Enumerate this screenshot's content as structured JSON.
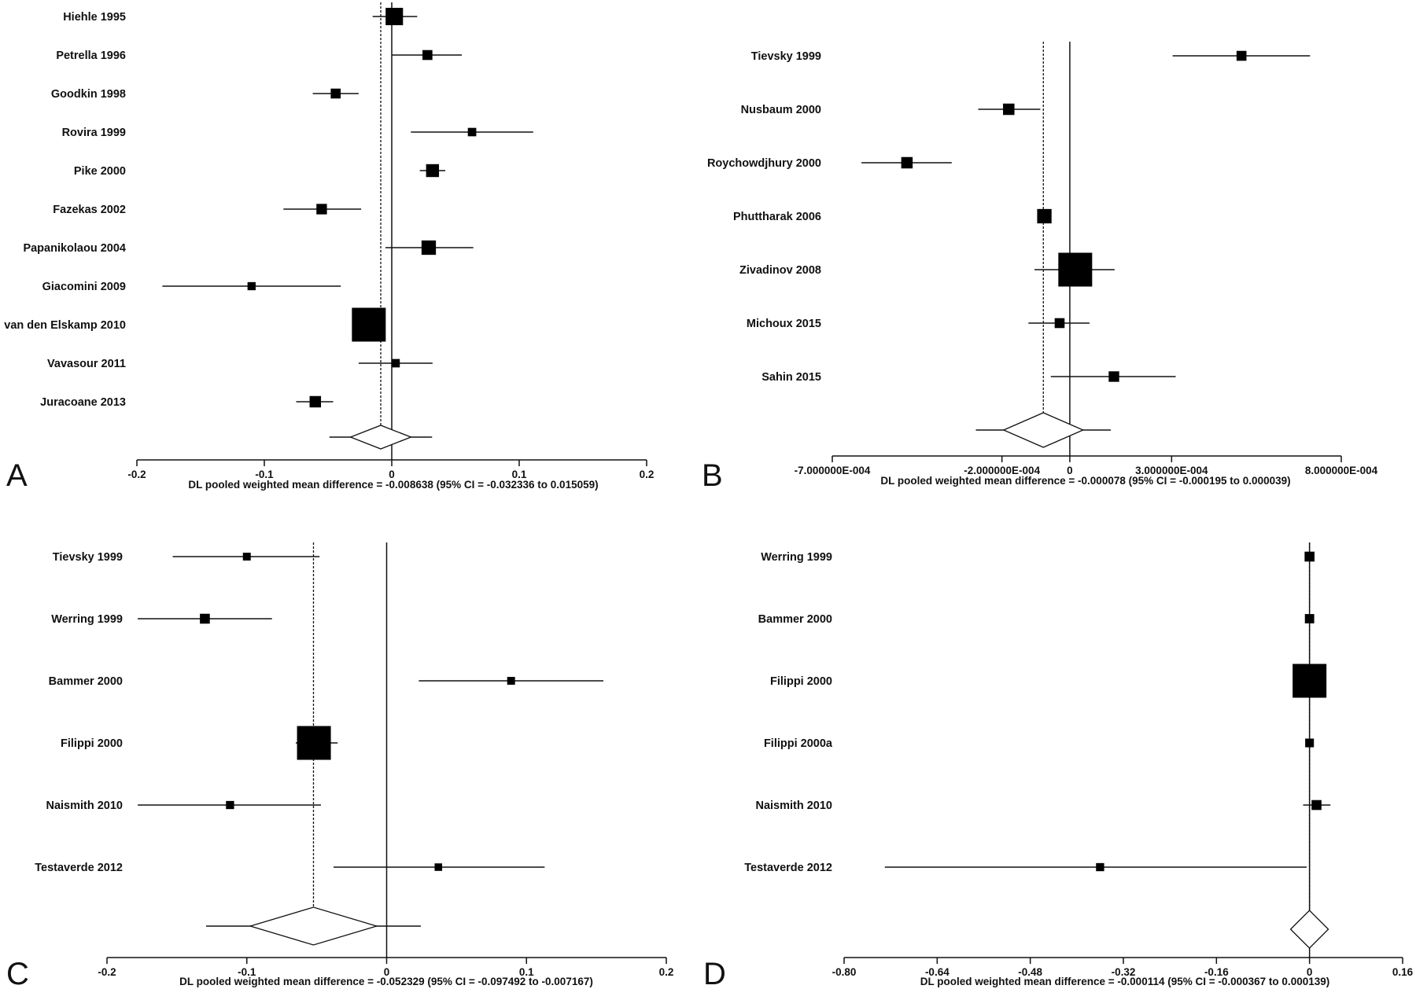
{
  "chart_data": [
    {
      "type": "forest",
      "panel_label": "A",
      "xlim": [
        -0.2,
        0.2
      ],
      "ticks": [
        -0.2,
        -0.1,
        0,
        0.1,
        0.2
      ],
      "tick_labels": [
        "-0.2",
        "-0.1",
        "0",
        "0.1",
        "0.2"
      ],
      "studies": [
        {
          "label": "Hiehle 1995",
          "est": 0.002,
          "lo": -0.015,
          "hi": 0.02,
          "weight": 0.45
        },
        {
          "label": "Petrella 1996",
          "est": 0.028,
          "lo": 0.0,
          "hi": 0.055,
          "weight": 0.2
        },
        {
          "label": "Goodkin 1998",
          "est": -0.044,
          "lo": -0.062,
          "hi": -0.026,
          "weight": 0.2
        },
        {
          "label": "Rovira 1999",
          "est": 0.063,
          "lo": 0.015,
          "hi": 0.111,
          "weight": 0.15
        },
        {
          "label": "Pike 2000",
          "est": 0.032,
          "lo": 0.022,
          "hi": 0.042,
          "weight": 0.3
        },
        {
          "label": "Fazekas 2002",
          "est": -0.055,
          "lo": -0.085,
          "hi": -0.024,
          "weight": 0.22
        },
        {
          "label": "Papanikolaou 2004",
          "est": 0.029,
          "lo": -0.005,
          "hi": 0.064,
          "weight": 0.35
        },
        {
          "label": "Giacomini 2009",
          "est": -0.11,
          "lo": -0.18,
          "hi": -0.04,
          "weight": 0.14
        },
        {
          "label": "van den Elskamp 2010",
          "est": -0.018,
          "lo": -0.03,
          "hi": -0.007,
          "weight": 1.0
        },
        {
          "label": "Vavasour 2011",
          "est": 0.003,
          "lo": -0.026,
          "hi": 0.032,
          "weight": 0.15
        },
        {
          "label": "Juracoane 2013",
          "est": -0.06,
          "lo": -0.075,
          "hi": -0.046,
          "weight": 0.25
        }
      ],
      "pooled": {
        "est": -0.008638,
        "lo": -0.032336,
        "hi": 0.015059
      },
      "caption": "DL pooled weighted mean difference = -0.008638  (95% CI = -0.032336 to 0.015059)"
    },
    {
      "type": "forest",
      "panel_label": "B",
      "xlim": [
        -0.0007,
        0.0008
      ],
      "ticks": [
        -0.0007,
        -0.0002,
        0,
        0.0003,
        0.0008
      ],
      "tick_labels": [
        "-7.000000E-004",
        "-2.000000E-004",
        "0",
        "3.000000E-004",
        "8.000000E-004"
      ],
      "studies": [
        {
          "label": "Tievsky 1999",
          "est": 0.000506,
          "lo": 0.000303,
          "hi": 0.000708,
          "weight": 0.2
        },
        {
          "label": "Nusbaum 2000",
          "est": -0.00018,
          "lo": -0.00027,
          "hi": -8.7e-05,
          "weight": 0.25
        },
        {
          "label": "Roychowdjhury 2000",
          "est": -0.00048,
          "lo": -0.000614,
          "hi": -0.000348,
          "weight": 0.25
        },
        {
          "label": "Phuttharak 2006",
          "est": -7.5e-05,
          "lo": -7.5e-05,
          "hi": -7.5e-05,
          "weight": 0.35
        },
        {
          "label": "Zivadinov 2008",
          "est": 1.6e-05,
          "lo": -0.000104,
          "hi": 0.000132,
          "weight": 1.0
        },
        {
          "label": "Michoux 2015",
          "est": -3e-05,
          "lo": -0.000122,
          "hi": 5.8e-05,
          "weight": 0.2
        },
        {
          "label": "Sahin 2015",
          "est": 0.00013,
          "lo": -5.6e-05,
          "hi": 0.000312,
          "weight": 0.22
        }
      ],
      "pooled": {
        "est": -7.8e-05,
        "lo": -0.000195,
        "hi": 3.9e-05
      },
      "caption": "DL pooled weighted mean difference = -0.000078  (95% CI = -0.000195 to 0.000039)"
    },
    {
      "type": "forest",
      "panel_label": "C",
      "xlim": [
        -0.2,
        0.2
      ],
      "ticks": [
        -0.2,
        -0.1,
        0,
        0.1,
        0.2
      ],
      "tick_labels": [
        "-0.2",
        "-0.1",
        "0",
        "0.1",
        "0.2"
      ],
      "studies": [
        {
          "label": "Tievsky 1999",
          "est": -0.1,
          "lo": -0.153,
          "hi": -0.048,
          "weight": 0.13
        },
        {
          "label": "Werring 1999",
          "est": -0.13,
          "lo": -0.178,
          "hi": -0.082,
          "weight": 0.2
        },
        {
          "label": "Bammer 2000",
          "est": 0.089,
          "lo": 0.023,
          "hi": 0.155,
          "weight": 0.13
        },
        {
          "label": "Filippi 2000",
          "est": -0.052,
          "lo": -0.065,
          "hi": -0.035,
          "weight": 1.0
        },
        {
          "label": "Naismith 2010",
          "est": -0.112,
          "lo": -0.178,
          "hi": -0.047,
          "weight": 0.14
        },
        {
          "label": "Testaverde 2012",
          "est": 0.037,
          "lo": -0.038,
          "hi": 0.113,
          "weight": 0.12
        }
      ],
      "pooled": {
        "est": -0.052329,
        "lo": -0.097492,
        "hi": -0.007167
      },
      "caption": "DL pooled weighted mean difference = -0.052329  (95% CI = -0.097492 to -0.007167)"
    },
    {
      "type": "forest",
      "panel_label": "D",
      "xlim": [
        -0.8,
        0.16
      ],
      "ticks": [
        -0.8,
        -0.64,
        -0.48,
        -0.32,
        -0.16,
        0,
        0.16
      ],
      "tick_labels": [
        "-0.80",
        "-0.64",
        "-0.48",
        "-0.32",
        "-0.16",
        "0",
        "0.16"
      ],
      "studies": [
        {
          "label": "Werring 1999",
          "est": 0.0,
          "lo": 0.0,
          "hi": 0.0,
          "weight": 0.2
        },
        {
          "label": "Bammer 2000",
          "est": 0.0,
          "lo": 0.0,
          "hi": 0.0,
          "weight": 0.18
        },
        {
          "label": "Filippi 2000",
          "est": 0.0,
          "lo": 0.0,
          "hi": 0.0,
          "weight": 1.0
        },
        {
          "label": "Filippi 2000a",
          "est": 0.0,
          "lo": 0.0,
          "hi": 0.0,
          "weight": 0.16
        },
        {
          "label": "Naismith 2010",
          "est": 0.012,
          "lo": -0.011,
          "hi": 0.036,
          "weight": 0.2
        },
        {
          "label": "Testaverde 2012",
          "est": -0.36,
          "lo": -0.73,
          "hi": -0.005,
          "weight": 0.14
        }
      ],
      "pooled": {
        "est": -0.000114,
        "lo": -0.000367,
        "hi": 0.000139
      },
      "caption": "DL pooled weighted mean difference = -0.000114  (95% CI = -0.000367 to 0.000139)"
    }
  ]
}
